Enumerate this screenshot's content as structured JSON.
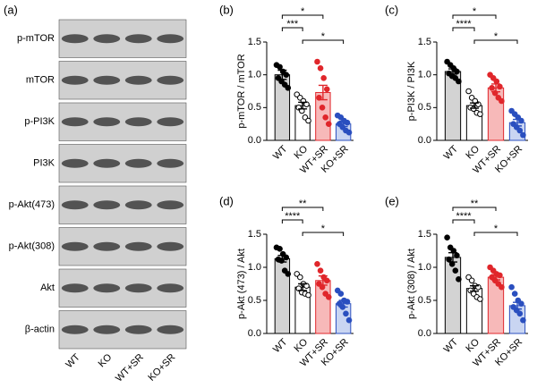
{
  "blot": {
    "panel": "(a)",
    "rows": [
      "p-mTOR",
      "mTOR",
      "p-PI3K",
      "PI3K",
      "p-Akt(473)",
      "p-Akt(308)",
      "Akt",
      "β-actin"
    ],
    "lanes": [
      "WT",
      "KO",
      "WT+SR",
      "KO+SR"
    ]
  },
  "chart_data": [
    {
      "type": "bar",
      "panel": "(b)",
      "ylabel": "p-mTOR / mTOR",
      "categories": [
        "WT",
        "KO",
        "WT+SR",
        "KO+SR"
      ],
      "values": [
        1.0,
        0.53,
        0.73,
        0.25
      ],
      "errors": [
        0.07,
        0.05,
        0.11,
        0.04
      ],
      "points": [
        [
          1.15,
          1.12,
          1.05,
          1.0,
          0.95,
          0.9,
          0.85,
          0.8
        ],
        [
          0.7,
          0.65,
          0.6,
          0.55,
          0.5,
          0.45,
          0.35,
          0.3
        ],
        [
          1.2,
          1.1,
          0.95,
          0.78,
          0.65,
          0.5,
          0.35,
          0.25
        ],
        [
          0.38,
          0.35,
          0.3,
          0.27,
          0.25,
          0.2,
          0.15,
          0.12
        ]
      ],
      "colors": [
        "#d3d3d3",
        "#ffffff",
        "#f7b9b9",
        "#c9d5f2"
      ],
      "edge_colors": [
        "#000000",
        "#000000",
        "#e0262b",
        "#2a4fbf"
      ],
      "point_fill": [
        "#000000",
        "#ffffff",
        "#e0262b",
        "#2a4fbf"
      ],
      "point_stroke": [
        "#000000",
        "#000000",
        "#e0262b",
        "#2a4fbf"
      ],
      "annotations": [
        "***",
        "*",
        "*"
      ],
      "ylim": [
        0,
        1.5
      ],
      "yticks": [
        {
          "value": 0,
          "label": "0.0"
        },
        0.5,
        {
          "value": 1,
          "label": "1.0"
        },
        1.5
      ]
    },
    {
      "type": "bar",
      "panel": "(c)",
      "ylabel": "p-PI3K / PI3K",
      "categories": [
        "WT",
        "KO",
        "WT+SR",
        "KO+SR"
      ],
      "values": [
        1.05,
        0.53,
        0.8,
        0.27
      ],
      "errors": [
        0.04,
        0.04,
        0.06,
        0.05
      ],
      "points": [
        [
          1.2,
          1.15,
          1.1,
          1.05,
          1.02,
          0.98,
          0.95,
          0.9
        ],
        [
          0.75,
          0.65,
          0.6,
          0.55,
          0.5,
          0.48,
          0.42,
          0.4
        ],
        [
          1.0,
          0.95,
          0.9,
          0.82,
          0.8,
          0.72,
          0.65,
          0.6
        ],
        [
          0.45,
          0.4,
          0.35,
          0.3,
          0.25,
          0.2,
          0.15,
          0.08
        ]
      ],
      "colors": [
        "#d3d3d3",
        "#ffffff",
        "#f7b9b9",
        "#c9d5f2"
      ],
      "edge_colors": [
        "#000000",
        "#000000",
        "#e0262b",
        "#2a4fbf"
      ],
      "point_fill": [
        "#000000",
        "#ffffff",
        "#e0262b",
        "#2a4fbf"
      ],
      "point_stroke": [
        "#000000",
        "#000000",
        "#e0262b",
        "#2a4fbf"
      ],
      "annotations": [
        "****",
        "*",
        "*"
      ],
      "ylim": [
        0,
        1.5
      ],
      "yticks": [
        {
          "value": 0,
          "label": "0.0"
        },
        0.5,
        {
          "value": 1,
          "label": "1.0"
        },
        1.5
      ]
    },
    {
      "type": "bar",
      "panel": "(d)",
      "ylabel": "p-Akt (473) / Akt",
      "categories": [
        "WT",
        "KO",
        "WT+SR",
        "KO+SR"
      ],
      "values": [
        1.13,
        0.7,
        0.8,
        0.45
      ],
      "errors": [
        0.05,
        0.05,
        0.07,
        0.05
      ],
      "points": [
        [
          1.3,
          1.28,
          1.2,
          1.15,
          1.12,
          1.1,
          0.95,
          0.9
        ],
        [
          0.9,
          0.85,
          0.75,
          0.72,
          0.68,
          0.62,
          0.6,
          0.58
        ],
        [
          1.05,
          0.95,
          0.85,
          0.8,
          0.75,
          0.7,
          0.6,
          0.55
        ],
        [
          0.65,
          0.6,
          0.5,
          0.48,
          0.45,
          0.4,
          0.3,
          0.2
        ]
      ],
      "colors": [
        "#d3d3d3",
        "#ffffff",
        "#f7b9b9",
        "#c9d5f2"
      ],
      "edge_colors": [
        "#000000",
        "#000000",
        "#e0262b",
        "#2a4fbf"
      ],
      "point_fill": [
        "#000000",
        "#ffffff",
        "#e0262b",
        "#2a4fbf"
      ],
      "point_stroke": [
        "#000000",
        "#000000",
        "#e0262b",
        "#2a4fbf"
      ],
      "annotations": [
        "****",
        "**",
        "*"
      ],
      "ylim": [
        0,
        1.5
      ],
      "yticks": [
        {
          "value": 0,
          "label": "0.0"
        },
        0.5,
        {
          "value": 1,
          "label": "1.0"
        },
        1.5
      ]
    },
    {
      "type": "bar",
      "panel": "(e)",
      "ylabel": "p-Akt (308) / Akt",
      "categories": [
        "WT",
        "KO",
        "WT+SR",
        "KO+SR"
      ],
      "values": [
        1.15,
        0.68,
        0.85,
        0.42
      ],
      "errors": [
        0.07,
        0.04,
        0.04,
        0.05
      ],
      "points": [
        [
          1.45,
          1.3,
          1.25,
          1.18,
          1.12,
          1.05,
          0.95,
          0.82
        ],
        [
          0.85,
          0.8,
          0.72,
          0.7,
          0.65,
          0.6,
          0.55,
          0.52
        ],
        [
          1.0,
          0.95,
          0.9,
          0.88,
          0.85,
          0.8,
          0.75,
          0.7
        ],
        [
          0.7,
          0.6,
          0.5,
          0.45,
          0.4,
          0.35,
          0.3,
          0.2
        ]
      ],
      "colors": [
        "#d3d3d3",
        "#ffffff",
        "#f7b9b9",
        "#c9d5f2"
      ],
      "edge_colors": [
        "#000000",
        "#000000",
        "#e0262b",
        "#2a4fbf"
      ],
      "point_fill": [
        "#000000",
        "#ffffff",
        "#e0262b",
        "#2a4fbf"
      ],
      "point_stroke": [
        "#000000",
        "#000000",
        "#e0262b",
        "#2a4fbf"
      ],
      "annotations": [
        "****",
        "**",
        "*"
      ],
      "ylim": [
        0,
        1.5
      ],
      "yticks": [
        {
          "value": 0,
          "label": "0.0"
        },
        0.5,
        {
          "value": 1,
          "label": "1.0"
        },
        1.5
      ]
    }
  ]
}
